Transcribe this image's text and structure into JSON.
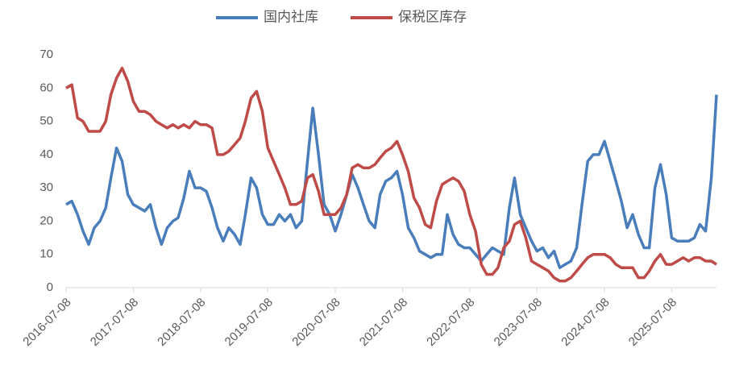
{
  "chart_data": {
    "type": "line",
    "x": [
      "2016-07-08",
      "2016-08-08",
      "2016-09-08",
      "2016-10-08",
      "2016-11-08",
      "2016-12-08",
      "2017-01-08",
      "2017-02-08",
      "2017-03-08",
      "2017-04-08",
      "2017-05-08",
      "2017-06-08",
      "2017-07-08",
      "2017-08-08",
      "2017-09-08",
      "2017-10-08",
      "2017-11-08",
      "2017-12-08",
      "2018-01-08",
      "2018-02-08",
      "2018-03-08",
      "2018-04-08",
      "2018-05-08",
      "2018-06-08",
      "2018-07-08",
      "2018-08-08",
      "2018-09-08",
      "2018-10-08",
      "2018-11-08",
      "2018-12-08",
      "2019-01-08",
      "2019-02-08",
      "2019-03-08",
      "2019-04-08",
      "2019-05-08",
      "2019-06-08",
      "2019-07-08",
      "2019-08-08",
      "2019-09-08",
      "2019-10-08",
      "2019-11-08",
      "2019-12-08",
      "2020-01-08",
      "2020-02-08",
      "2020-03-08",
      "2020-04-08",
      "2020-05-08",
      "2020-06-08",
      "2020-07-08",
      "2020-08-08",
      "2020-09-08",
      "2020-10-08",
      "2020-11-08",
      "2020-12-08",
      "2021-01-08",
      "2021-02-08",
      "2021-03-08",
      "2021-04-08",
      "2021-05-08",
      "2021-06-08",
      "2021-07-08",
      "2021-08-08",
      "2021-09-08",
      "2021-10-08",
      "2021-11-08",
      "2021-12-08",
      "2022-01-08",
      "2022-02-08",
      "2022-03-08",
      "2022-04-08",
      "2022-05-08",
      "2022-06-08",
      "2022-07-08",
      "2022-08-08",
      "2022-09-08",
      "2022-10-08",
      "2022-11-08",
      "2022-12-08",
      "2023-01-08",
      "2023-02-08",
      "2023-03-08",
      "2023-04-08",
      "2023-05-08",
      "2023-06-08",
      "2023-07-08",
      "2023-08-08",
      "2023-09-08",
      "2023-10-08",
      "2023-11-08",
      "2023-12-08",
      "2024-01-08",
      "2024-02-08",
      "2024-03-08",
      "2024-04-08",
      "2024-05-08",
      "2024-06-08",
      "2024-07-08",
      "2024-08-08",
      "2024-09-08",
      "2024-10-08",
      "2024-11-08",
      "2024-12-08",
      "2025-01-08",
      "2025-02-08",
      "2025-03-08",
      "2025-04-08",
      "2025-05-08",
      "2025-06-08",
      "2025-07-08",
      "2025-08-08",
      "2025-09-08",
      "2025-10-08",
      "2025-11-08",
      "2025-12-08",
      "2026-01-08",
      "2026-02-08",
      "2026-03-08"
    ],
    "series": [
      {
        "name": "国内社库",
        "color": "#4a7ebb",
        "values": [
          25,
          26,
          22,
          17,
          13,
          18,
          20,
          24,
          33,
          42,
          38,
          28,
          25,
          24,
          23,
          25,
          18,
          13,
          18,
          20,
          21,
          27,
          35,
          30,
          30,
          29,
          24,
          18,
          14,
          18,
          16,
          13,
          22,
          33,
          30,
          22,
          19,
          19,
          22,
          20,
          22,
          18,
          20,
          38,
          54,
          40,
          25,
          22,
          17,
          22,
          28,
          34,
          30,
          25,
          20,
          18,
          28,
          32,
          33,
          35,
          28,
          18,
          15,
          11,
          10,
          9,
          10,
          10,
          22,
          16,
          13,
          12,
          12,
          10,
          8,
          10,
          12,
          11,
          10,
          24,
          33,
          22,
          18,
          14,
          11,
          12,
          9,
          11,
          6,
          7,
          8,
          12,
          25,
          38,
          40,
          40,
          44,
          38,
          32,
          26,
          18,
          22,
          16,
          12,
          12,
          30,
          37,
          28,
          15,
          14,
          14,
          14,
          15,
          19,
          17,
          33,
          58
        ]
      },
      {
        "name": "保税区库存",
        "color": "#be4b48",
        "values": [
          60,
          61,
          51,
          50,
          47,
          47,
          47,
          50,
          58,
          63,
          66,
          62,
          56,
          53,
          53,
          52,
          50,
          49,
          48,
          49,
          48,
          49,
          48,
          50,
          49,
          49,
          48,
          40,
          40,
          41,
          43,
          45,
          50,
          57,
          59,
          53,
          42,
          38,
          34,
          30,
          25,
          25,
          26,
          33,
          34,
          29,
          22,
          22,
          22,
          24,
          28,
          36,
          37,
          36,
          36,
          37,
          39,
          41,
          42,
          44,
          40,
          35,
          27,
          24,
          19,
          18,
          26,
          31,
          32,
          33,
          32,
          29,
          22,
          17,
          7,
          4,
          4,
          6,
          12,
          14,
          19,
          20,
          15,
          8,
          7,
          6,
          5,
          3,
          2,
          2,
          3,
          5,
          7,
          9,
          10,
          10,
          10,
          9,
          7,
          6,
          6,
          6,
          3,
          3,
          5,
          8,
          10,
          7,
          7,
          8,
          9,
          8,
          9,
          9,
          8,
          8,
          7
        ]
      }
    ],
    "xlim": [
      "2016-07-08",
      "2026-03-08"
    ],
    "xticks": [
      "2016-07-08",
      "2017-07-08",
      "2018-07-08",
      "2019-07-08",
      "2020-07-08",
      "2021-07-08",
      "2022-07-08",
      "2023-07-08",
      "2024-07-08",
      "2025-07-08"
    ],
    "ylim": [
      0,
      70
    ],
    "yticks": [
      0,
      10,
      20,
      30,
      40,
      50,
      60,
      70
    ],
    "legend": "top"
  }
}
